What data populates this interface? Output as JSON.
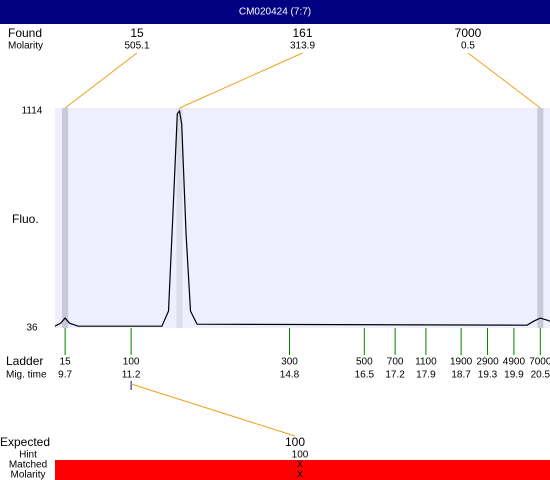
{
  "title": "CM020424 (7:7)",
  "found": {
    "label": "Found",
    "sublabel": "Molarity",
    "peaks": [
      {
        "size": "15",
        "molarity": "505.1",
        "time": 9.7
      },
      {
        "size": "161",
        "molarity": "313.9",
        "time": 12.3
      },
      {
        "size": "7000",
        "molarity": "0.5",
        "time": 20.5
      }
    ]
  },
  "plot": {
    "y_label": "Fluo.",
    "xlim": [
      9.47,
      20.72
    ],
    "ylim": [
      36,
      1114
    ],
    "yticks": [
      36,
      1114
    ],
    "trace": {
      "x": [
        9.47,
        9.6,
        9.7,
        9.8,
        10.0,
        11.9,
        12.05,
        12.15,
        12.25,
        12.3,
        12.35,
        12.45,
        12.55,
        12.7,
        20.2,
        20.35,
        20.5,
        20.65,
        20.72
      ],
      "y": [
        45,
        60,
        85,
        60,
        45,
        45,
        120,
        600,
        1100,
        1114,
        1050,
        500,
        120,
        55,
        50,
        70,
        85,
        75,
        70
      ]
    }
  },
  "ladder": {
    "label": "Ladder",
    "sublabel": "Mig. time",
    "bands": [
      {
        "size": "15",
        "time": 9.7
      },
      {
        "size": "100",
        "time": 11.2
      },
      {
        "size": "300",
        "time": 14.8
      },
      {
        "size": "500",
        "time": 16.5
      },
      {
        "size": "700",
        "time": 17.2
      },
      {
        "size": "1100",
        "time": 17.9
      },
      {
        "size": "1900",
        "time": 18.7
      },
      {
        "size": "2900",
        "time": 19.3
      },
      {
        "size": "4900",
        "time": 19.9
      },
      {
        "size": "7000",
        "time": 20.5
      }
    ]
  },
  "expected": {
    "label": "Expected",
    "value": "100",
    "hint_label": "Hint",
    "hint": "100",
    "matched_label": "Matched",
    "matched": "X",
    "molarity_label": "Molarity",
    "molarity": "X"
  }
}
